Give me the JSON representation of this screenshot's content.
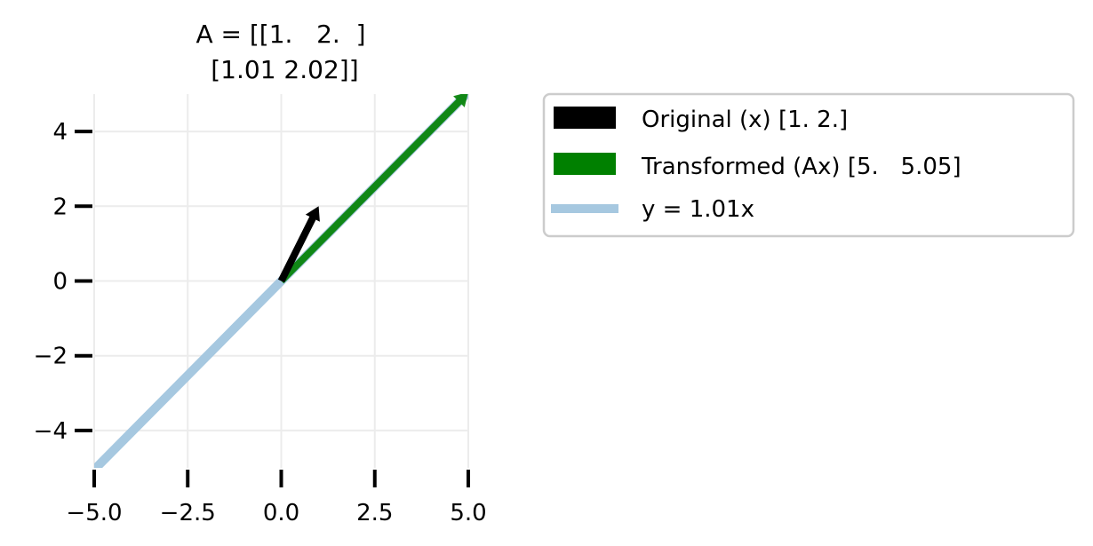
{
  "chart_data": {
    "type": "line",
    "title_lines": [
      "A = [[1.   2.  ]",
      " [1.01 2.02]]"
    ],
    "xlabel": "",
    "ylabel": "",
    "xlim": [
      -5,
      5
    ],
    "ylim": [
      -5,
      5
    ],
    "grid": true,
    "x_ticks": [
      -5.0,
      -2.5,
      0.0,
      2.5,
      5.0
    ],
    "x_tick_labels": [
      "−5.0",
      "−2.5",
      "0.0",
      "2.5",
      "5.0"
    ],
    "y_ticks": [
      -4,
      -2,
      0,
      2,
      4
    ],
    "y_tick_labels": [
      "−4",
      "−2",
      "0",
      "2",
      "4"
    ],
    "vectors": [
      {
        "name": "Original (x) [1. 2.]",
        "x": [
          0,
          1
        ],
        "y": [
          0,
          2
        ],
        "color": "#000000"
      },
      {
        "name": "Transformed (Ax) [5.   5.05]",
        "x": [
          0,
          5
        ],
        "y": [
          0,
          5.05
        ],
        "color": "#008000"
      }
    ],
    "lines": [
      {
        "name": "y = 1.01x",
        "x": [
          -5,
          5
        ],
        "y": [
          -5.05,
          5.05
        ],
        "color": "#a6c8e0"
      }
    ],
    "legend_position": "outside-right"
  }
}
